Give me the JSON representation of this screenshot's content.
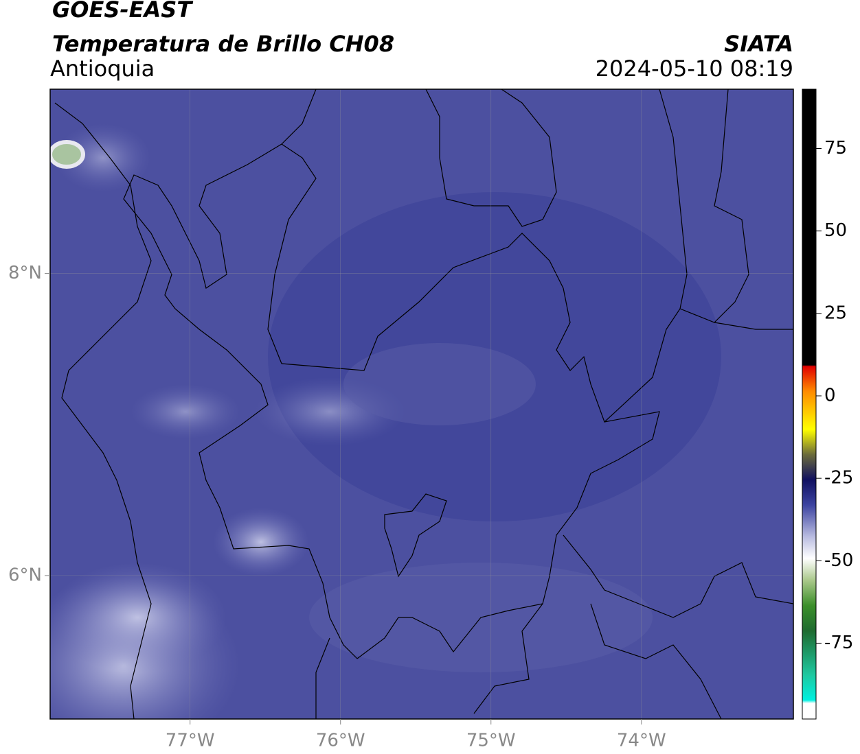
{
  "header": {
    "title": "GOES-EAST",
    "subtitle": "Temperatura de Brillo CH08",
    "region": "Antioquia",
    "source": "SIATA",
    "datetime": "2024-05-10 08:19"
  },
  "map": {
    "lon_range": [
      -77.93,
      -72.99
    ],
    "lat_range": [
      5.05,
      9.22
    ],
    "lon_ticks": [
      {
        "value": -77,
        "label": "77°W"
      },
      {
        "value": -76,
        "label": "76°W"
      },
      {
        "value": -75,
        "label": "75°W"
      },
      {
        "value": -74,
        "label": "74°W"
      }
    ],
    "lat_ticks": [
      {
        "value": 8,
        "label": "8°N"
      },
      {
        "value": 6,
        "label": "6°N"
      }
    ]
  },
  "colorbar": {
    "range": [
      -98,
      93
    ],
    "ticks": [
      75,
      50,
      25,
      0,
      -25,
      -50,
      -75
    ]
  }
}
